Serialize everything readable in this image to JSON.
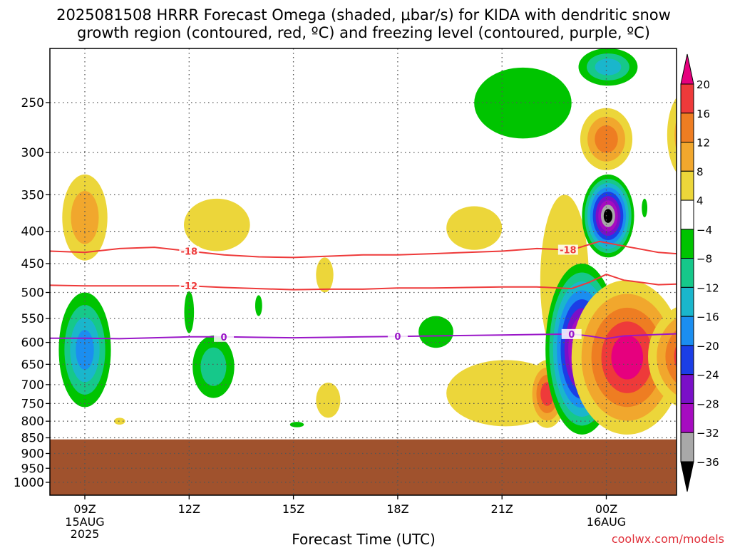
{
  "chart_data": {
    "type": "heatmap",
    "title_line1": "2025081508 HRRR Forecast Omega (shaded, μbar/s) for KIDA with dendritic snow",
    "title_line2": "growth region (contoured, red, ºC) and freezing level (contoured, purple, ºC)",
    "xlabel": "Forecast Time (UTC)",
    "ylabel": "",
    "credit": "coolwx.com/models",
    "x_range_hours_from_09z": [
      -1.0,
      17.5
    ],
    "y_range_hPa": [
      200,
      1050
    ],
    "y_scale": "log-pressure",
    "grid": true,
    "x_ticks": [
      {
        "h": 0,
        "label": "09Z",
        "sub1": "15AUG",
        "sub2": "2025"
      },
      {
        "h": 3,
        "label": "12Z",
        "sub1": "",
        "sub2": ""
      },
      {
        "h": 6,
        "label": "15Z",
        "sub1": "",
        "sub2": ""
      },
      {
        "h": 9,
        "label": "18Z",
        "sub1": "",
        "sub2": ""
      },
      {
        "h": 12,
        "label": "21Z",
        "sub1": "",
        "sub2": ""
      },
      {
        "h": 15,
        "label": "00Z",
        "sub1": "16AUG",
        "sub2": ""
      }
    ],
    "y_ticks": [
      "250",
      "300",
      "350",
      "400",
      "450",
      "500",
      "550",
      "600",
      "650",
      "700",
      "750",
      "800",
      "850",
      "900",
      "950",
      "1000"
    ],
    "colorbar": {
      "labels": [
        "20",
        "16",
        "12",
        "8",
        "4",
        "−4",
        "−8",
        "−12",
        "−16",
        "−20",
        "−24",
        "−28",
        "−32",
        "−36"
      ],
      "colors": [
        "#e6007e",
        "#ee3a3a",
        "#ee7d22",
        "#f1a72d",
        "#ecd63a",
        "#ffffff",
        "#00c400",
        "#16c88a",
        "#1ab6cc",
        "#1b8ef0",
        "#1b3ee6",
        "#7a10c8",
        "#a60cc0",
        "#a8a8a8",
        "#000000"
      ]
    },
    "ground_pressure_hPa": 855,
    "ground_color": "#a0522d",
    "contours": [
      {
        "name": "-18",
        "color": "#ee3a3a",
        "labels_at_h": [
          3.0,
          13.9
        ],
        "points": [
          [
            -1,
            430
          ],
          [
            0,
            432
          ],
          [
            1,
            426
          ],
          [
            2,
            424
          ],
          [
            3,
            430
          ],
          [
            4,
            436
          ],
          [
            5,
            439
          ],
          [
            6,
            440
          ],
          [
            7,
            438
          ],
          [
            8,
            436
          ],
          [
            9,
            436
          ],
          [
            10,
            434
          ],
          [
            11,
            432
          ],
          [
            12,
            430
          ],
          [
            13,
            426
          ],
          [
            14,
            428
          ],
          [
            14.8,
            415
          ],
          [
            15.5,
            422
          ],
          [
            16.5,
            432
          ],
          [
            17.5,
            436
          ]
        ]
      },
      {
        "name": "-12",
        "color": "#ee3a3a",
        "labels_at_h": [
          3.0
        ],
        "points": [
          [
            -1,
            487
          ],
          [
            0,
            488
          ],
          [
            1,
            488
          ],
          [
            2,
            488
          ],
          [
            3,
            488
          ],
          [
            4,
            491
          ],
          [
            5,
            493
          ],
          [
            6,
            495
          ],
          [
            7,
            494
          ],
          [
            8,
            494
          ],
          [
            9,
            492
          ],
          [
            10,
            492
          ],
          [
            11,
            491
          ],
          [
            12,
            490
          ],
          [
            13,
            490
          ],
          [
            14,
            493
          ],
          [
            14.5,
            482
          ],
          [
            15,
            468
          ],
          [
            15.5,
            478
          ],
          [
            16.5,
            486
          ],
          [
            17.5,
            484
          ]
        ]
      },
      {
        "name": "0",
        "color": "#9a16c8",
        "labels_at_h": [
          4.0,
          9.0,
          14.0
        ],
        "points": [
          [
            -1,
            591
          ],
          [
            0,
            591
          ],
          [
            1,
            592
          ],
          [
            2,
            590
          ],
          [
            3,
            588
          ],
          [
            4,
            588
          ],
          [
            5,
            589
          ],
          [
            6,
            590
          ],
          [
            7,
            589
          ],
          [
            8,
            588
          ],
          [
            9,
            587
          ],
          [
            10,
            586
          ],
          [
            11,
            585
          ],
          [
            12,
            584
          ],
          [
            13,
            583
          ],
          [
            14,
            582
          ],
          [
            14.5,
            586
          ],
          [
            15,
            592
          ],
          [
            15.5,
            586
          ],
          [
            16.5,
            583
          ],
          [
            17.5,
            580
          ]
        ]
      }
    ],
    "omega_features": [
      {
        "h": 0.0,
        "p_top": 325,
        "p_bot": 445,
        "w": 0.65,
        "levels": [
          4,
          8
        ]
      },
      {
        "h": 0.0,
        "p_top": 500,
        "p_bot": 760,
        "w": 0.75,
        "levels": [
          -4,
          -8,
          -12,
          -16
        ]
      },
      {
        "h": 1.0,
        "p_top": 790,
        "p_bot": 810,
        "w": 0.16,
        "levels": [
          4
        ]
      },
      {
        "h": 3.7,
        "p_top": 585,
        "p_bot": 735,
        "w": 0.6,
        "levels": [
          -4,
          -8
        ]
      },
      {
        "h": 3.0,
        "p_top": 498,
        "p_bot": 580,
        "w": 0.14,
        "levels": [
          -4
        ]
      },
      {
        "h": 5.0,
        "p_top": 505,
        "p_bot": 545,
        "w": 0.1,
        "levels": [
          -4
        ]
      },
      {
        "h": 3.8,
        "p_top": 355,
        "p_bot": 430,
        "w": 0.95,
        "levels": [
          4
        ]
      },
      {
        "h": 6.9,
        "p_top": 440,
        "p_bot": 500,
        "w": 0.25,
        "levels": [
          4
        ]
      },
      {
        "h": 7.0,
        "p_top": 695,
        "p_bot": 790,
        "w": 0.35,
        "levels": [
          4
        ]
      },
      {
        "h": 6.1,
        "p_top": 802,
        "p_bot": 818,
        "w": 0.2,
        "levels": [
          -4
        ]
      },
      {
        "h": 10.1,
        "p_top": 545,
        "p_bot": 612,
        "w": 0.5,
        "levels": [
          -4
        ]
      },
      {
        "h": 11.2,
        "p_top": 365,
        "p_bot": 428,
        "w": 0.8,
        "levels": [
          4
        ]
      },
      {
        "h": 12.1,
        "p_top": 640,
        "p_bot": 815,
        "w": 1.7,
        "levels": [
          4
        ]
      },
      {
        "h": 12.6,
        "p_top": 220,
        "p_bot": 285,
        "w": 1.4,
        "levels": [
          -4
        ]
      },
      {
        "h": 13.3,
        "p_top": 640,
        "p_bot": 820,
        "w": 0.55,
        "levels": [
          4,
          8,
          12,
          16
        ]
      },
      {
        "h": 13.8,
        "p_top": 350,
        "p_bot": 655,
        "w": 0.7,
        "levels": [
          4
        ]
      },
      {
        "h": 15.05,
        "p_top": 205,
        "p_bot": 235,
        "w": 0.85,
        "levels": [
          -4,
          -8,
          -12
        ]
      },
      {
        "h": 15.0,
        "p_top": 255,
        "p_bot": 320,
        "w": 0.75,
        "levels": [
          4,
          8,
          12
        ]
      },
      {
        "h": 17.3,
        "p_top": 240,
        "p_bot": 330,
        "w": 0.55,
        "levels": [
          4,
          8
        ]
      },
      {
        "h": 14.3,
        "p_top": 450,
        "p_bot": 840,
        "w": 1.05,
        "levels": [
          -4,
          -8,
          -12,
          -16,
          -20,
          -24,
          -28,
          -32,
          -36
        ]
      },
      {
        "h": 15.05,
        "p_top": 325,
        "p_bot": 440,
        "w": 0.75,
        "levels": [
          -4,
          -8,
          -12,
          -16,
          -20,
          -24,
          -28,
          -32,
          -36
        ]
      },
      {
        "h": 15.6,
        "p_top": 478,
        "p_bot": 840,
        "w": 1.6,
        "levels": [
          4,
          8,
          12,
          16,
          20
        ]
      },
      {
        "h": 17.6,
        "p_top": 518,
        "p_bot": 770,
        "w": 1.4,
        "levels": [
          4,
          8,
          12,
          16,
          20
        ]
      },
      {
        "h": 17.6,
        "p_top": 375,
        "p_bot": 490,
        "w": 0.55,
        "levels": [
          -4,
          -8
        ]
      },
      {
        "h": 17.6,
        "p_top": 780,
        "p_bot": 830,
        "w": 0.5,
        "levels": [
          -4,
          -8
        ]
      },
      {
        "h": 16.1,
        "p_top": 355,
        "p_bot": 380,
        "w": 0.08,
        "levels": [
          -4
        ]
      }
    ]
  }
}
